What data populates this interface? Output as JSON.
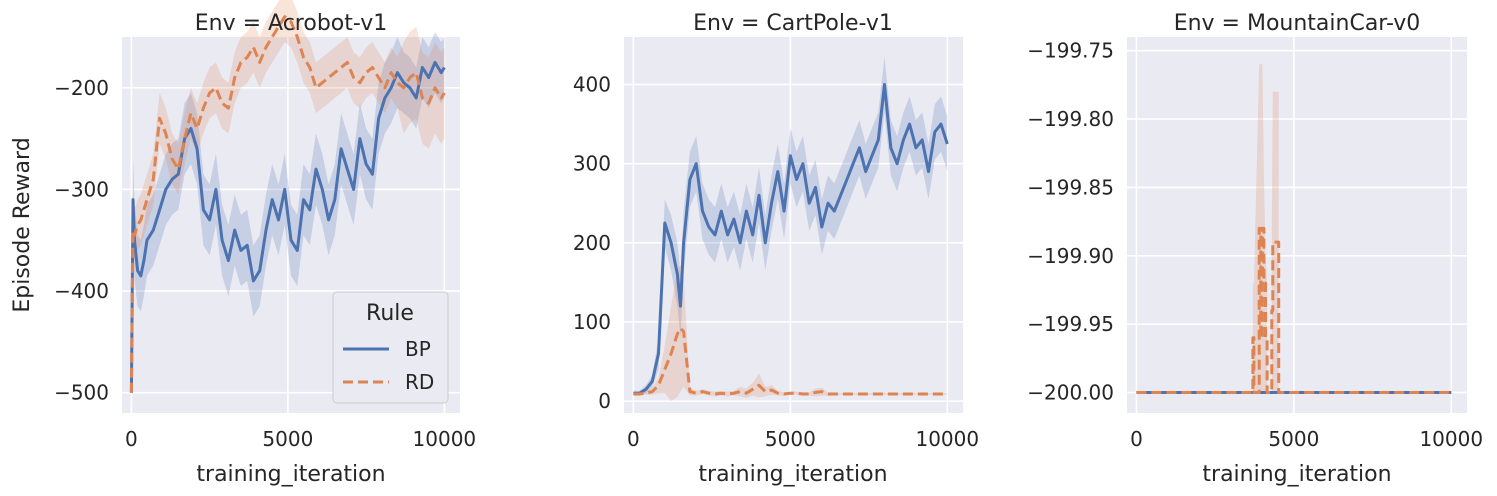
{
  "chart_data": [
    {
      "type": "line",
      "title": "Env = Acrobot-v1",
      "xlabel": "training_iteration",
      "ylabel": "Episode Reward",
      "xlim": [
        -300,
        10500
      ],
      "ylim": [
        -520,
        -150
      ],
      "xticks": [
        0,
        5000,
        10000
      ],
      "xtick_labels": [
        "0",
        "5000",
        "10000"
      ],
      "yticks": [
        -500,
        -400,
        -300,
        -200
      ],
      "ytick_labels": [
        "−500",
        "−400",
        "−300",
        "−200"
      ],
      "grid": true,
      "legend": {
        "title": "Rule",
        "position": "lower right"
      },
      "x": [
        0,
        50,
        100,
        200,
        300,
        400,
        500,
        700,
        900,
        1100,
        1300,
        1500,
        1700,
        1900,
        2100,
        2300,
        2500,
        2700,
        2900,
        3100,
        3300,
        3500,
        3700,
        3900,
        4100,
        4300,
        4500,
        4700,
        4900,
        5100,
        5300,
        5500,
        5700,
        5900,
        6100,
        6300,
        6500,
        6700,
        6900,
        7100,
        7300,
        7500,
        7700,
        7900,
        8100,
        8300,
        8500,
        8700,
        8900,
        9100,
        9300,
        9500,
        9700,
        9900,
        10000
      ],
      "series": [
        {
          "name": "BP",
          "values": [
            -500,
            -310,
            -350,
            -380,
            -385,
            -370,
            -350,
            -340,
            -320,
            -300,
            -290,
            -285,
            -250,
            -240,
            -260,
            -320,
            -330,
            -300,
            -350,
            -370,
            -340,
            -360,
            -355,
            -390,
            -380,
            -340,
            -310,
            -330,
            -300,
            -350,
            -360,
            -310,
            -320,
            -280,
            -300,
            -330,
            -310,
            -260,
            -280,
            -300,
            -250,
            -275,
            -285,
            -230,
            -210,
            -200,
            -185,
            -195,
            -200,
            -210,
            -180,
            -190,
            -175,
            -185,
            -180
          ],
          "band": [
            15,
            40,
            40,
            35,
            35,
            35,
            35,
            35,
            35,
            35,
            35,
            35,
            35,
            35,
            35,
            35,
            35,
            35,
            35,
            35,
            35,
            35,
            35,
            35,
            35,
            35,
            35,
            35,
            35,
            35,
            35,
            35,
            35,
            35,
            35,
            35,
            35,
            35,
            35,
            35,
            35,
            35,
            35,
            35,
            35,
            35,
            35,
            30,
            30,
            30,
            30,
            30,
            30,
            30,
            30
          ]
        },
        {
          "name": "RD",
          "values": [
            -500,
            -340,
            -345,
            -335,
            -330,
            -320,
            -310,
            -290,
            -230,
            -245,
            -270,
            -280,
            -250,
            -225,
            -240,
            -220,
            -205,
            -200,
            -215,
            -220,
            -190,
            -175,
            -170,
            -160,
            -175,
            -160,
            -150,
            -140,
            -130,
            -135,
            -150,
            -170,
            -180,
            -200,
            -195,
            -190,
            -185,
            -180,
            -175,
            -190,
            -195,
            -185,
            -180,
            -190,
            -200,
            -185,
            -195,
            -200,
            -190,
            -185,
            -210,
            -215,
            -200,
            -210,
            -205
          ],
          "band": [
            15,
            25,
            25,
            25,
            25,
            25,
            25,
            25,
            25,
            25,
            25,
            25,
            25,
            25,
            25,
            25,
            25,
            25,
            25,
            25,
            25,
            25,
            25,
            25,
            25,
            25,
            25,
            25,
            25,
            25,
            25,
            25,
            25,
            25,
            25,
            25,
            25,
            25,
            25,
            25,
            25,
            25,
            25,
            25,
            25,
            25,
            25,
            45,
            45,
            45,
            45,
            45,
            45,
            45,
            45
          ]
        }
      ]
    },
    {
      "type": "line",
      "title": "Env = CartPole-v1",
      "xlabel": "training_iteration",
      "ylabel": "",
      "xlim": [
        -300,
        10500
      ],
      "ylim": [
        -15,
        460
      ],
      "xticks": [
        0,
        5000,
        10000
      ],
      "xtick_labels": [
        "0",
        "5000",
        "10000"
      ],
      "yticks": [
        0,
        100,
        200,
        300,
        400
      ],
      "ytick_labels": [
        "0",
        "100",
        "200",
        "300",
        "400"
      ],
      "grid": true,
      "x": [
        0,
        200,
        400,
        600,
        800,
        1000,
        1200,
        1400,
        1500,
        1600,
        1800,
        2000,
        2200,
        2400,
        2600,
        2800,
        3000,
        3200,
        3400,
        3600,
        3800,
        4000,
        4200,
        4400,
        4600,
        4800,
        5000,
        5200,
        5400,
        5600,
        5800,
        6000,
        6200,
        6400,
        6600,
        6800,
        7000,
        7200,
        7400,
        7600,
        7800,
        8000,
        8200,
        8400,
        8600,
        8800,
        9000,
        9200,
        9400,
        9600,
        9800,
        10000
      ],
      "series": [
        {
          "name": "BP",
          "values": [
            10,
            10,
            15,
            25,
            60,
            225,
            200,
            160,
            120,
            200,
            280,
            300,
            240,
            220,
            210,
            240,
            210,
            230,
            200,
            240,
            210,
            260,
            200,
            250,
            290,
            240,
            310,
            280,
            300,
            250,
            270,
            220,
            250,
            240,
            260,
            280,
            300,
            320,
            290,
            310,
            330,
            400,
            320,
            300,
            330,
            350,
            320,
            330,
            290,
            340,
            350,
            325
          ],
          "band": [
            3,
            3,
            5,
            8,
            20,
            30,
            35,
            40,
            40,
            40,
            35,
            35,
            35,
            35,
            35,
            35,
            35,
            35,
            35,
            35,
            35,
            35,
            35,
            35,
            35,
            35,
            35,
            35,
            35,
            35,
            35,
            35,
            35,
            35,
            35,
            35,
            35,
            35,
            35,
            35,
            35,
            35,
            35,
            35,
            35,
            35,
            35,
            35,
            35,
            35,
            35,
            35
          ]
        },
        {
          "name": "RD",
          "values": [
            9,
            9,
            10,
            12,
            20,
            40,
            60,
            85,
            92,
            88,
            12,
            10,
            12,
            10,
            9,
            10,
            9,
            10,
            12,
            10,
            15,
            20,
            12,
            14,
            10,
            9,
            10,
            10,
            9,
            9,
            11,
            12,
            9,
            9,
            9,
            9,
            9,
            9,
            9,
            9,
            9,
            9,
            9,
            9,
            9,
            9,
            9,
            9,
            9,
            9,
            9,
            9
          ],
          "band": [
            1,
            1,
            2,
            4,
            10,
            30,
            60,
            80,
            80,
            70,
            5,
            3,
            3,
            3,
            3,
            3,
            3,
            3,
            6,
            6,
            8,
            15,
            6,
            6,
            3,
            2,
            2,
            2,
            2,
            2,
            5,
            5,
            2,
            2,
            1,
            1,
            1,
            1,
            1,
            1,
            1,
            1,
            1,
            1,
            1,
            1,
            1,
            1,
            1,
            1,
            1,
            1
          ]
        }
      ]
    },
    {
      "type": "line",
      "title": "Env = MountainCar-v0",
      "xlabel": "training_iteration",
      "ylabel": "",
      "xlim": [
        -300,
        10500
      ],
      "ylim": [
        -200.015,
        -199.74
      ],
      "xticks": [
        0,
        5000,
        10000
      ],
      "xtick_labels": [
        "0",
        "5000",
        "10000"
      ],
      "yticks": [
        -200.0,
        -199.95,
        -199.9,
        -199.85,
        -199.8,
        -199.75
      ],
      "ytick_labels": [
        "−200.00",
        "−199.95",
        "−199.90",
        "−199.85",
        "−199.80",
        "−199.75"
      ],
      "grid": true,
      "series": [
        {
          "name": "BP",
          "x": [
            0,
            10000
          ],
          "values": [
            -200.0,
            -200.0
          ]
        },
        {
          "name": "RD",
          "x": [
            0,
            3700,
            3700,
            3730,
            3730,
            3900,
            3900,
            3950,
            3950,
            4000,
            4000,
            4050,
            4050,
            4100,
            4100,
            4150,
            4150,
            4300,
            4300,
            4330,
            4330,
            4400,
            4400,
            4520,
            4520,
            10000
          ],
          "values": [
            -200.0,
            -200.0,
            -199.96,
            -199.96,
            -200.0,
            -200.0,
            -199.88,
            -199.88,
            -199.96,
            -199.96,
            -199.88,
            -199.88,
            -199.92,
            -199.92,
            -199.96,
            -199.96,
            -200.0,
            -200.0,
            -199.94,
            -199.94,
            -199.89,
            -199.89,
            -199.89,
            -199.89,
            -200.0,
            -200.0
          ],
          "bands": [
            {
              "x": [
                3700,
                3730,
                3900,
                3950,
                4000,
                4050,
                4100,
                4150
              ],
              "lower": [
                -200.0,
                -200.0,
                -200.0,
                -200.0,
                -200.0,
                -200.0,
                -200.0,
                -200.0
              ],
              "upper": [
                -199.92,
                -199.92,
                -199.76,
                -199.76,
                -199.76,
                -199.84,
                -199.9,
                -199.92
              ]
            },
            {
              "x": [
                4300,
                4330,
                4400,
                4520
              ],
              "lower": [
                -200.0,
                -200.0,
                -200.0,
                -200.0
              ],
              "upper": [
                -199.88,
                -199.78,
                -199.78,
                -199.78
              ]
            }
          ]
        }
      ]
    }
  ],
  "colors": {
    "BP": "#4c72b0",
    "RD": "#dd8452",
    "panel_bg": "#eaeaf2",
    "grid": "#ffffff"
  }
}
